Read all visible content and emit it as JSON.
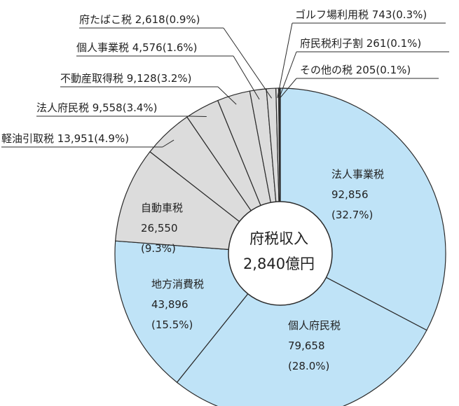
{
  "chart_data": {
    "type": "pie",
    "style": "donut",
    "center_label": {
      "line1": "府税収入",
      "line2": "2,840億円"
    },
    "colors": {
      "highlight": "#bfe3f7",
      "muted": "#dcdcdc",
      "border": "#2b2b2b"
    },
    "slices": [
      {
        "name": "法人事業税",
        "value": "92,856",
        "percent": "(32.7%)",
        "value_num": 92856,
        "group": "highlight"
      },
      {
        "name": "個人府民税",
        "value": "79,658",
        "percent": "(28.0%)",
        "value_num": 79658,
        "group": "highlight"
      },
      {
        "name": "地方消費税",
        "value": "43,896",
        "percent": "(15.5%)",
        "value_num": 43896,
        "group": "highlight"
      },
      {
        "name": "自動車税",
        "value": "26,550",
        "percent": "(9.3%)",
        "value_num": 26550,
        "group": "muted"
      },
      {
        "name": "軽油引取税",
        "value": "13,951",
        "percent": "(4.9%)",
        "value_num": 13951,
        "group": "muted"
      },
      {
        "name": "法人府民税",
        "value": "9,558",
        "percent": "(3.4%)",
        "value_num": 9558,
        "group": "muted"
      },
      {
        "name": "不動産取得税",
        "value": "9,128",
        "percent": "(3.2%)",
        "value_num": 9128,
        "group": "muted"
      },
      {
        "name": "個人事業税",
        "value": "4,576",
        "percent": "(1.6%)",
        "value_num": 4576,
        "group": "muted"
      },
      {
        "name": "府たばこ税",
        "value": "2,618",
        "percent": "(0.9%)",
        "value_num": 2618,
        "group": "muted"
      },
      {
        "name": "ゴルフ場利用税",
        "value": "743",
        "percent": "(0.3%)",
        "value_num": 743,
        "group": "muted"
      },
      {
        "name": "府民税利子割",
        "value": "261",
        "percent": "(0.1%)",
        "value_num": 261,
        "group": "muted"
      },
      {
        "name": "その他の税",
        "value": "205",
        "percent": "(0.1%)",
        "value_num": 205,
        "group": "muted"
      }
    ]
  }
}
